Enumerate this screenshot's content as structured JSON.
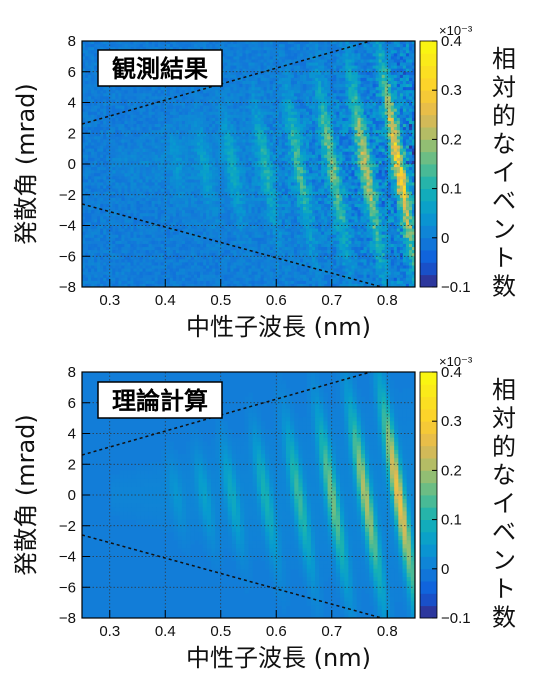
{
  "chart_data": [
    {
      "type": "heatmap",
      "panel_label": "観測結果",
      "xlabel": "中性子波長 (nm)",
      "ylabel": "発散角 (mrad)",
      "colorbar_label": "相対的なイベント数",
      "colorbar_exponent": "×10⁻³",
      "xlim": [
        0.25,
        0.85
      ],
      "ylim": [
        -8,
        8
      ],
      "clim": [
        -0.1,
        0.4
      ],
      "x_ticks": [
        0.3,
        0.4,
        0.5,
        0.6,
        0.7,
        0.8
      ],
      "y_ticks": [
        -8,
        -6,
        -4,
        -2,
        0,
        2,
        4,
        6,
        8
      ],
      "colorbar_ticks": [
        -0.1,
        0,
        0.1,
        0.2,
        0.3,
        0.4
      ],
      "grid": true,
      "dashed_lines": [
        {
          "x": [
            0.25,
            0.77
          ],
          "y": [
            2.6,
            8.0
          ]
        },
        {
          "x": [
            0.25,
            0.79
          ],
          "y": [
            -2.6,
            -8.0
          ]
        }
      ],
      "noisy": true,
      "stripes": [
        {
          "center": 0.42,
          "amp": 0.03
        },
        {
          "center": 0.47,
          "amp": 0.05
        },
        {
          "center": 0.52,
          "amp": 0.07
        },
        {
          "center": 0.58,
          "amp": 0.09
        },
        {
          "center": 0.64,
          "amp": 0.12
        },
        {
          "center": 0.7,
          "amp": 0.16
        },
        {
          "center": 0.76,
          "amp": 0.2
        },
        {
          "center": 0.82,
          "amp": 0.26
        }
      ]
    },
    {
      "type": "heatmap",
      "panel_label": "理論計算",
      "xlabel": "中性子波長 (nm)",
      "ylabel": "発散角 (mrad)",
      "colorbar_label": "相対的なイベント数",
      "colorbar_exponent": "×10⁻³",
      "xlim": [
        0.25,
        0.85
      ],
      "ylim": [
        -8,
        8
      ],
      "clim": [
        -0.1,
        0.4
      ],
      "x_ticks": [
        0.3,
        0.4,
        0.5,
        0.6,
        0.7,
        0.8
      ],
      "y_ticks": [
        -8,
        -6,
        -4,
        -2,
        0,
        2,
        4,
        6,
        8
      ],
      "colorbar_ticks": [
        -0.1,
        0,
        0.1,
        0.2,
        0.3,
        0.4
      ],
      "grid": true,
      "dashed_lines": [
        {
          "x": [
            0.25,
            0.77
          ],
          "y": [
            2.6,
            8.0
          ]
        },
        {
          "x": [
            0.25,
            0.79
          ],
          "y": [
            -2.6,
            -8.0
          ]
        }
      ],
      "noisy": false,
      "stripes": [
        {
          "center": 0.42,
          "amp": 0.03
        },
        {
          "center": 0.47,
          "amp": 0.05
        },
        {
          "center": 0.52,
          "amp": 0.07
        },
        {
          "center": 0.58,
          "amp": 0.09
        },
        {
          "center": 0.64,
          "amp": 0.12
        },
        {
          "center": 0.7,
          "amp": 0.16
        },
        {
          "center": 0.76,
          "amp": 0.2
        },
        {
          "center": 0.82,
          "amp": 0.26
        }
      ]
    }
  ]
}
